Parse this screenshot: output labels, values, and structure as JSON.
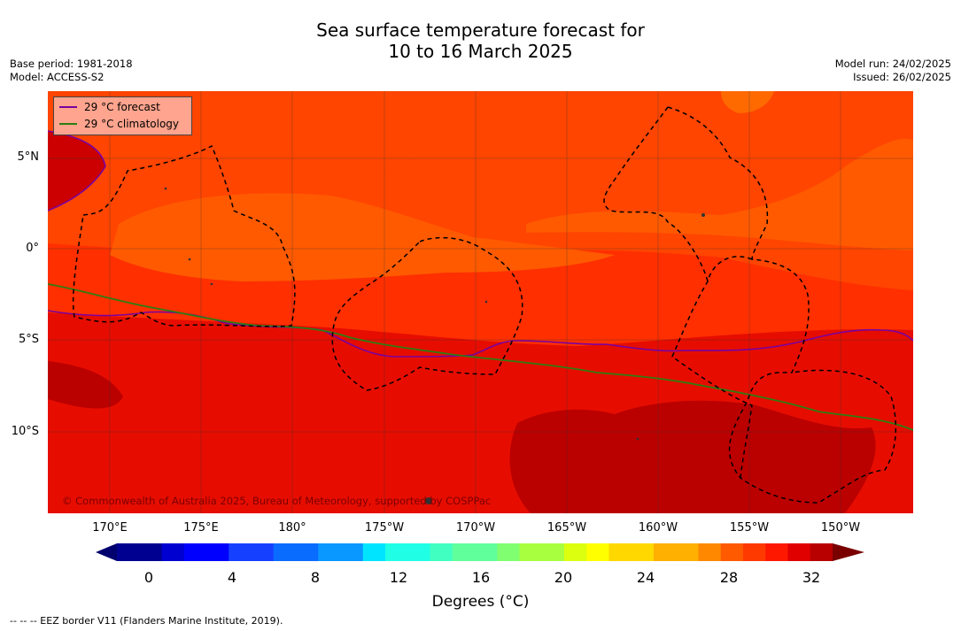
{
  "header": {
    "title_line1": "Sea surface temperature forecast for",
    "title_line2": "10 to 16 March 2025",
    "base_period": "Base period: 1981-2018",
    "model": "Model: ACCESS-S2",
    "model_run": "Model run: 24/02/2025",
    "issued": "Issued: 26/02/2025"
  },
  "map": {
    "lat_labels": [
      "5°N",
      "0°",
      "5°S",
      "10°S"
    ],
    "lon_labels": [
      "170°E",
      "175°E",
      "180°",
      "175°W",
      "170°W",
      "165°W",
      "160°W",
      "155°W",
      "150°W"
    ],
    "copyright": "© Commonwealth of Australia 2025, Bureau of Meteorology, supported by COSPPac",
    "legend": {
      "forecast": "29 °C  forecast",
      "climatology": "29 °C  climatology",
      "forecast_color": "#7a00a0",
      "climatology_color": "#2e7d12"
    }
  },
  "colorbar": {
    "ticks": [
      "0",
      "4",
      "8",
      "12",
      "16",
      "20",
      "24",
      "28",
      "32"
    ],
    "label": "Degrees (°C)",
    "min": 0,
    "max": 32
  },
  "footer": {
    "eez_note": "--  --  -- EEZ border V11 (Flanders Marine Institute, 2019)."
  }
}
